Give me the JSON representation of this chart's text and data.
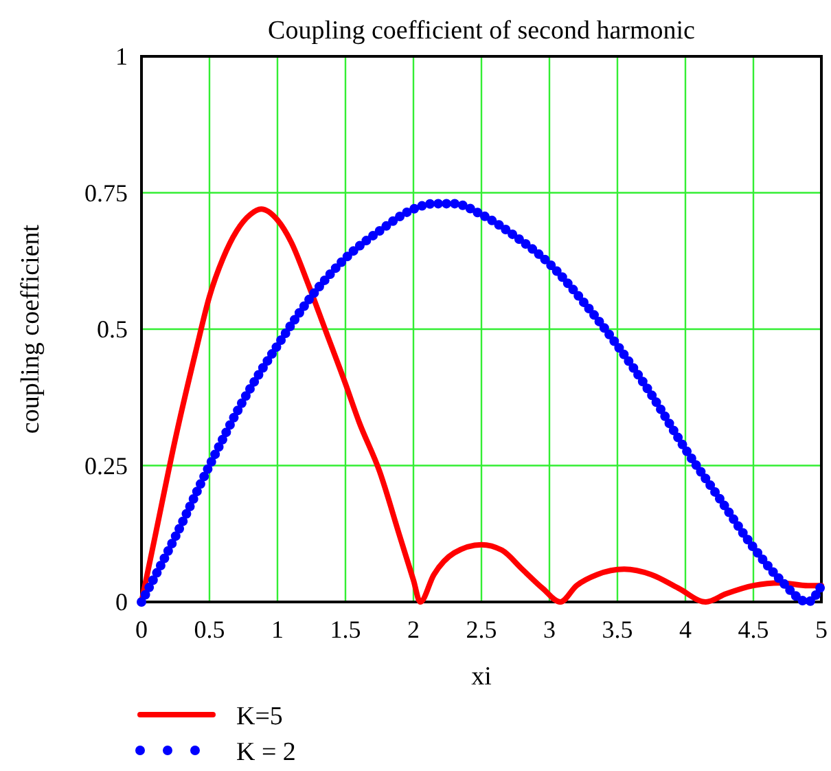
{
  "chart_data": {
    "type": "line",
    "title": "Coupling coefficient of second harmonic",
    "xlabel": "xi",
    "ylabel": "coupling coefficient",
    "xlim": [
      0,
      5
    ],
    "xticks": [
      0,
      0.5,
      1,
      1.5,
      2,
      2.5,
      3,
      3.5,
      4,
      4.5,
      5
    ],
    "ylim": [
      0,
      1
    ],
    "yticks": [
      0,
      0.25,
      0.5,
      0.75,
      1
    ],
    "grid": true,
    "legend": "bottom left",
    "series": [
      {
        "name": "K=5",
        "color": "#ff0000",
        "line_style": "solid",
        "x": [
          0,
          0.1,
          0.25,
          0.4,
          0.5,
          0.6,
          0.7,
          0.8,
          0.88,
          1.0,
          1.1,
          1.23,
          1.35,
          1.5,
          1.6,
          1.75,
          1.9,
          2.0,
          2.05,
          2.15,
          2.3,
          2.5,
          2.65,
          2.8,
          2.95,
          3.08,
          3.2,
          3.35,
          3.55,
          3.75,
          3.95,
          4.15,
          4.3,
          4.5,
          4.7,
          4.9,
          5
        ],
        "values": [
          0,
          0.12,
          0.3,
          0.46,
          0.56,
          0.63,
          0.68,
          0.71,
          0.72,
          0.7,
          0.66,
          0.58,
          0.5,
          0.4,
          0.33,
          0.24,
          0.12,
          0.04,
          0,
          0.05,
          0.09,
          0.105,
          0.095,
          0.06,
          0.025,
          0,
          0.03,
          0.05,
          0.06,
          0.05,
          0.025,
          0,
          0.015,
          0.03,
          0.035,
          0.03,
          0.03
        ]
      },
      {
        "name": "K = 2",
        "color": "#0000ff",
        "line_style": "dotted",
        "x": [
          0,
          0.25,
          0.5,
          0.75,
          1.0,
          1.25,
          1.5,
          1.75,
          2.0,
          2.15,
          2.3,
          2.5,
          2.75,
          3.0,
          3.25,
          3.5,
          3.75,
          4.0,
          4.25,
          4.5,
          4.7,
          4.9,
          5
        ],
        "values": [
          0,
          0.12,
          0.25,
          0.37,
          0.47,
          0.56,
          0.63,
          0.68,
          0.72,
          0.73,
          0.73,
          0.71,
          0.67,
          0.62,
          0.55,
          0.47,
          0.38,
          0.28,
          0.19,
          0.1,
          0.04,
          0,
          0.03
        ]
      }
    ]
  }
}
